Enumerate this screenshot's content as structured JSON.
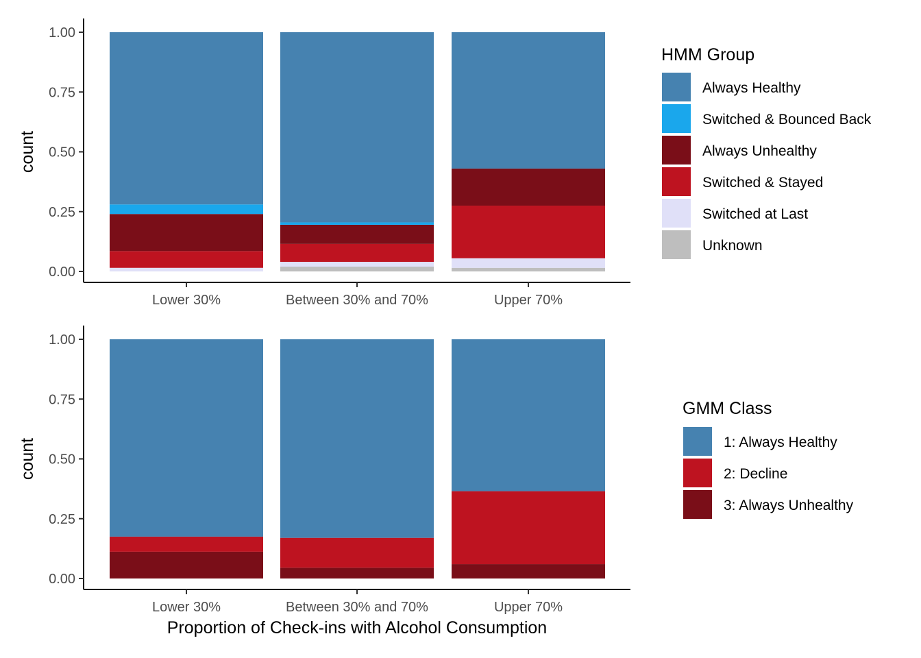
{
  "chart_data": [
    {
      "type": "bar",
      "stacked": true,
      "ylabel": "count",
      "xlabel": "",
      "ylim": [
        0,
        1
      ],
      "yticks": [
        "0.00",
        "0.25",
        "0.50",
        "0.75",
        "1.00"
      ],
      "categories": [
        "Lower 30%",
        "Between 30% and 70%",
        "Upper 70%"
      ],
      "legend_title": "HMM Group",
      "legend_position": "right",
      "series": [
        {
          "name": "Always Healthy",
          "color": "#4682B0",
          "values": [
            0.72,
            0.795,
            0.57
          ]
        },
        {
          "name": "Switched & Bounced Back",
          "color": "#1AA7EC",
          "values": [
            0.04,
            0.01,
            0.0
          ]
        },
        {
          "name": "Always Unhealthy",
          "color": "#7A0E18",
          "values": [
            0.155,
            0.08,
            0.155
          ]
        },
        {
          "name": "Switched & Stayed",
          "color": "#BE1320",
          "values": [
            0.07,
            0.075,
            0.22
          ]
        },
        {
          "name": "Switched at Last",
          "color": "#E0E0F8",
          "values": [
            0.015,
            0.02,
            0.04
          ]
        },
        {
          "name": "Unknown",
          "color": "#BEBEBE",
          "values": [
            0.0,
            0.02,
            0.015
          ]
        }
      ]
    },
    {
      "type": "bar",
      "stacked": true,
      "ylabel": "count",
      "xlabel": "Proportion of Check-ins with Alcohol Consumption",
      "ylim": [
        0,
        1
      ],
      "yticks": [
        "0.00",
        "0.25",
        "0.50",
        "0.75",
        "1.00"
      ],
      "categories": [
        "Lower 30%",
        "Between 30% and 70%",
        "Upper 70%"
      ],
      "legend_title": "GMM Class",
      "legend_position": "right",
      "series": [
        {
          "name": "1: Always Healthy",
          "color": "#4682B0",
          "values": [
            0.825,
            0.83,
            0.635
          ]
        },
        {
          "name": "2: Decline",
          "color": "#BE1320",
          "values": [
            0.063,
            0.125,
            0.305
          ]
        },
        {
          "name": "3: Always Unhealthy",
          "color": "#7A0E18",
          "values": [
            0.112,
            0.045,
            0.06
          ]
        }
      ]
    }
  ]
}
